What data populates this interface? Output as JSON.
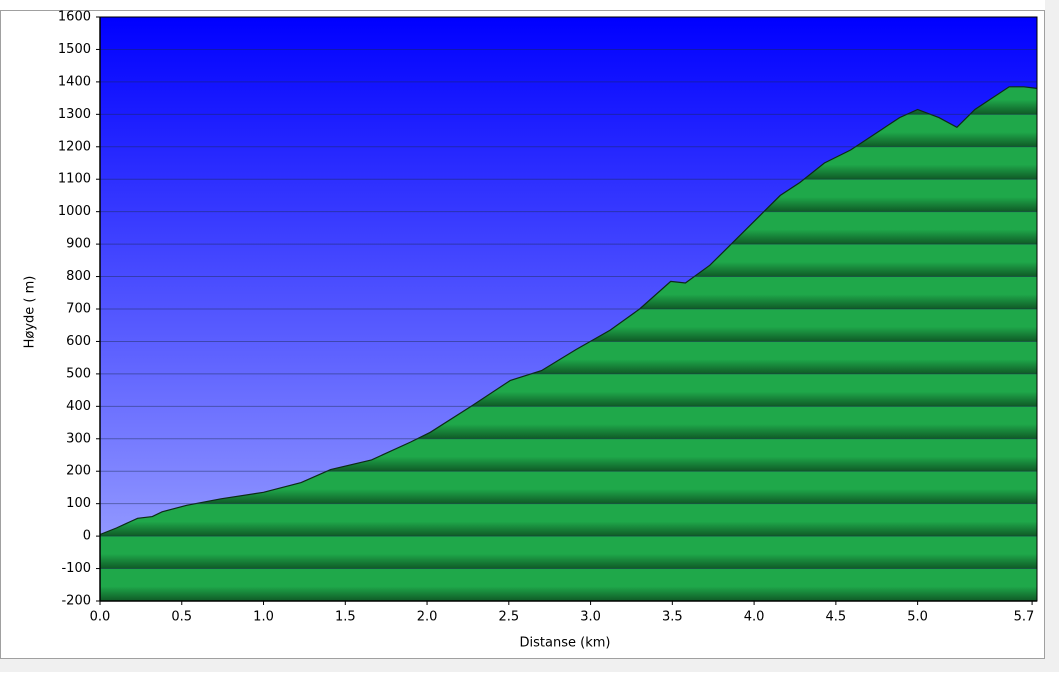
{
  "chart_data": {
    "type": "area",
    "xlabel": "Distanse   (km)",
    "ylabel": "Høyde ( m)",
    "x": [
      0,
      0.1,
      0.23,
      0.32,
      0.38,
      0.53,
      0.74,
      1.0,
      1.23,
      1.41,
      1.66,
      1.9,
      2.02,
      2.27,
      2.51,
      2.7,
      2.91,
      3.12,
      3.3,
      3.49,
      3.58,
      3.73,
      3.85,
      4.04,
      4.16,
      4.28,
      4.43,
      4.59,
      4.77,
      4.89,
      5.0,
      5.13,
      5.24,
      5.35,
      5.44,
      5.56,
      5.65,
      5.73
    ],
    "series": [
      {
        "name": "Høyde",
        "color": "#1fa84a",
        "values": [
          5,
          25,
          55,
          60,
          75,
          95,
          115,
          135,
          165,
          205,
          235,
          290,
          320,
          400,
          480,
          510,
          575,
          635,
          700,
          785,
          780,
          835,
          895,
          990,
          1050,
          1090,
          1150,
          1190,
          1250,
          1290,
          1315,
          1290,
          1260,
          1315,
          1345,
          1385,
          1385,
          1380
        ]
      }
    ],
    "xlim": [
      0,
      5.73
    ],
    "xticks": [
      {
        "value": 0,
        "label": "0.0"
      },
      0.5,
      {
        "value": 1,
        "label": "1.0"
      },
      1.5,
      {
        "value": 2,
        "label": "2.0"
      },
      2.5,
      {
        "value": 3,
        "label": "3.0"
      },
      3.5,
      {
        "value": 4,
        "label": "4.0"
      },
      4.5,
      {
        "value": 5,
        "label": "5.0"
      },
      5.7
    ],
    "ylim": [
      -200,
      1600
    ],
    "yticks": [
      -200,
      -100,
      0,
      100,
      200,
      300,
      400,
      500,
      600,
      700,
      800,
      900,
      1000,
      1100,
      1200,
      1300,
      1400,
      1500,
      1600
    ],
    "grid": true
  }
}
